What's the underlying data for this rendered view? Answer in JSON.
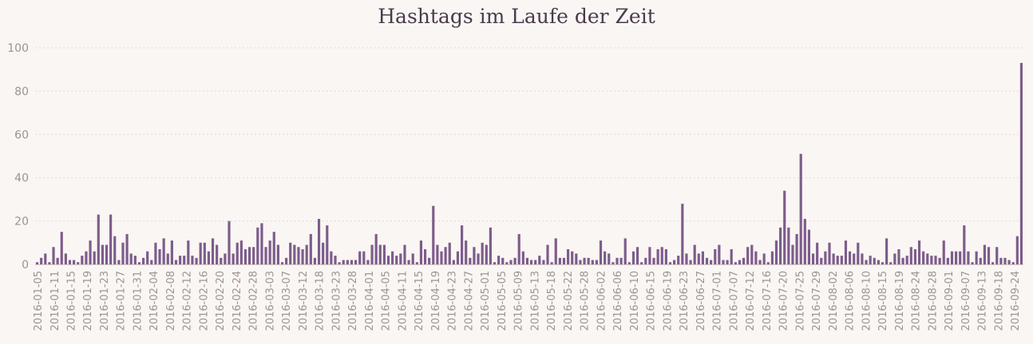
{
  "chart_data": {
    "type": "bar",
    "title": "Hashtags im Laufe der Zeit",
    "xlabel": "",
    "ylabel": "",
    "ylim": [
      0,
      100
    ],
    "yticks": [
      0,
      20,
      40,
      60,
      80,
      100
    ],
    "grid": true,
    "bar_color": "#7d5c8c",
    "x_tick_labels": [
      "2016-01-05",
      "2016-01-11",
      "2016-01-15",
      "2016-01-19",
      "2016-01-23",
      "2016-01-27",
      "2016-01-31",
      "2016-02-04",
      "2016-02-08",
      "2016-02-12",
      "2016-02-16",
      "2016-02-20",
      "2016-02-24",
      "2016-02-28",
      "2016-03-03",
      "2016-03-07",
      "2016-03-12",
      "2016-03-18",
      "2016-03-23",
      "2016-03-28",
      "2016-04-01",
      "2016-04-05",
      "2016-04-11",
      "2016-04-15",
      "2016-04-19",
      "2016-04-23",
      "2016-04-27",
      "2016-05-01",
      "2016-05-05",
      "2016-05-09",
      "2016-05-13",
      "2016-05-18",
      "2016-05-22",
      "2016-05-28",
      "2016-06-02",
      "2016-06-06",
      "2016-06-10",
      "2016-06-15",
      "2016-06-19",
      "2016-06-23",
      "2016-06-27",
      "2016-07-01",
      "2016-07-07",
      "2016-07-12",
      "2016-07-16",
      "2016-07-20",
      "2016-07-25",
      "2016-07-29",
      "2016-08-02",
      "2016-08-06",
      "2016-08-10",
      "2016-08-15",
      "2016-08-19",
      "2016-08-24",
      "2016-08-28",
      "2016-09-01",
      "2016-09-07",
      "2016-09-13",
      "2016-09-18",
      "2016-09-24"
    ],
    "values": [
      1,
      3,
      5,
      1,
      8,
      3,
      15,
      5,
      2,
      2,
      1,
      4,
      6,
      11,
      6,
      23,
      9,
      9,
      23,
      13,
      2,
      10,
      14,
      5,
      4,
      1,
      3,
      6,
      2,
      10,
      7,
      12,
      5,
      11,
      2,
      4,
      4,
      11,
      4,
      3,
      10,
      10,
      6,
      12,
      9,
      3,
      5,
      20,
      5,
      10,
      11,
      7,
      8,
      8,
      17,
      19,
      8,
      11,
      15,
      9,
      1,
      3,
      10,
      9,
      8,
      7,
      9,
      14,
      3,
      21,
      10,
      18,
      6,
      4,
      1,
      2,
      2,
      2,
      2,
      6,
      6,
      2,
      9,
      14,
      9,
      9,
      4,
      6,
      4,
      5,
      9,
      2,
      5,
      1,
      11,
      7,
      3,
      27,
      9,
      6,
      8,
      10,
      2,
      6,
      18,
      11,
      3,
      8,
      5,
      10,
      9,
      17,
      1,
      4,
      3,
      1,
      2,
      3,
      14,
      6,
      3,
      2,
      2,
      4,
      2,
      9,
      1,
      12,
      3,
      3,
      7,
      6,
      5,
      2,
      3,
      3,
      2,
      2,
      11,
      6,
      5,
      1,
      3,
      3,
      12,
      1,
      6,
      8,
      1,
      3,
      8,
      3,
      7,
      8,
      7,
      1,
      2,
      4,
      28,
      5,
      2,
      9,
      5,
      6,
      3,
      2,
      7,
      9,
      2,
      2,
      7,
      1,
      2,
      3,
      8,
      9,
      6,
      2,
      5,
      1,
      6,
      11,
      17,
      34,
      17,
      9,
      14,
      51,
      21,
      16,
      5,
      10,
      3,
      6,
      10,
      5,
      4,
      4,
      11,
      6,
      5,
      10,
      5,
      2,
      4,
      3,
      2,
      1,
      12,
      1,
      5,
      7,
      3,
      4,
      8,
      7,
      11,
      6,
      5,
      4,
      4,
      3,
      11,
      3,
      6,
      6,
      6,
      18,
      6,
      1,
      6,
      3,
      9,
      8,
      1,
      8,
      3,
      3,
      2,
      1,
      13,
      93
    ]
  }
}
